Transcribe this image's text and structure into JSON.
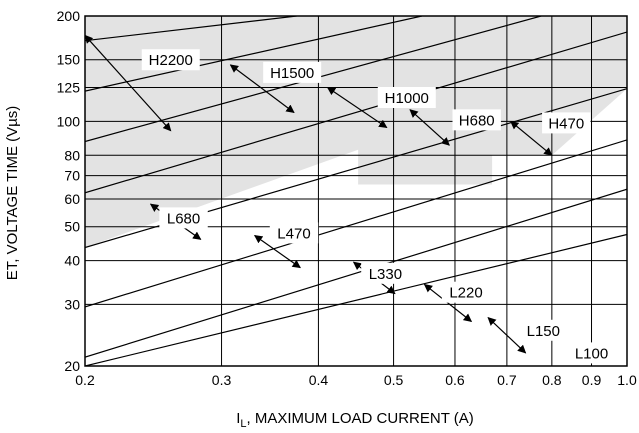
{
  "chart_data": {
    "type": "line",
    "xlabel": "I_L, MAXIMUM LOAD CURRENT (A)",
    "xlabel_main": "I",
    "xlabel_sub": "L",
    "xlabel_rest": ", MAXIMUM LOAD CURRENT (A)",
    "ylabel": "ET, VOLTAGE TIME (Vµs)",
    "x_scale": "log",
    "y_scale": "log",
    "xlim": [
      0.2,
      1.0
    ],
    "ylim": [
      20,
      200
    ],
    "x_ticks": [
      0.2,
      0.3,
      0.4,
      0.5,
      0.6,
      0.7,
      0.8,
      0.9,
      1.0
    ],
    "x_tick_labels": [
      "0.2",
      "0.3",
      "0.4",
      "0.5",
      "0.6",
      "0.7",
      "0.8",
      "0.9",
      "1.0"
    ],
    "y_ticks": [
      20,
      30,
      40,
      50,
      60,
      70,
      80,
      100,
      125,
      150,
      200
    ],
    "y_tick_labels": [
      "20",
      "30",
      "40",
      "50",
      "60",
      "70",
      "80",
      "100",
      "125",
      "150",
      "200"
    ],
    "grid": true,
    "shaded_region": {
      "color": "#e3e3e3",
      "polygon": [
        [
          0.2,
          200
        ],
        [
          1.0,
          200
        ],
        [
          1.0,
          124
        ],
        [
          0.8,
          80
        ],
        [
          0.67,
          80
        ],
        [
          0.67,
          66
        ],
        [
          0.45,
          66
        ],
        [
          0.45,
          83
        ],
        [
          0.2,
          43.6
        ]
      ]
    },
    "boundary_lines": [
      {
        "points": [
          [
            0.2,
            20
          ],
          [
            1.0,
            47.5
          ]
        ]
      },
      {
        "points": [
          [
            0.2,
            21.2
          ],
          [
            1.0,
            64
          ]
        ]
      },
      {
        "points": [
          [
            0.2,
            29.5
          ],
          [
            1.0,
            88.5
          ]
        ]
      },
      {
        "points": [
          [
            0.2,
            43.6
          ],
          [
            1.0,
            124
          ]
        ]
      },
      {
        "points": [
          [
            0.2,
            62.5
          ],
          [
            1.0,
            180
          ]
        ]
      },
      {
        "points": [
          [
            0.2,
            87.6
          ],
          [
            0.775,
            200
          ]
        ]
      },
      {
        "points": [
          [
            0.2,
            122
          ],
          [
            0.544,
            200
          ]
        ]
      },
      {
        "points": [
          [
            0.2,
            170
          ],
          [
            0.375,
            200
          ]
        ]
      }
    ],
    "regions": [
      {
        "name": "H2200",
        "label_at": [
          0.258,
          150
        ],
        "arrow": [
          [
            0.2,
            176
          ],
          [
            0.258,
            94
          ]
        ]
      },
      {
        "name": "H1500",
        "label_at": [
          0.37,
          138
        ],
        "arrow": [
          [
            0.308,
            145
          ],
          [
            0.372,
            106
          ]
        ]
      },
      {
        "name": "H1000",
        "label_at": [
          0.52,
          117
        ],
        "arrow": [
          [
            0.411,
            125
          ],
          [
            0.49,
            96
          ]
        ]
      },
      {
        "name": "H680",
        "label_at": [
          0.64,
          101
        ],
        "arrow": [
          [
            0.525,
            108
          ],
          [
            0.59,
            85.5
          ]
        ]
      },
      {
        "name": "H470",
        "label_at": [
          0.835,
          99
        ],
        "arrow": [
          [
            0.708,
            100
          ],
          [
            0.8,
            80
          ]
        ]
      },
      {
        "name": "L680",
        "label_at": [
          0.268,
          53
        ],
        "arrow": [
          [
            0.243,
            58
          ],
          [
            0.282,
            46
          ]
        ]
      },
      {
        "name": "L470",
        "label_at": [
          0.372,
          48
        ],
        "arrow": [
          [
            0.331,
            47.2
          ],
          [
            0.379,
            38.2
          ]
        ]
      },
      {
        "name": "L330",
        "label_at": [
          0.488,
          36.8
        ],
        "arrow": [
          [
            0.444,
            39.6
          ],
          [
            0.502,
            32.2
          ]
        ]
      },
      {
        "name": "L220",
        "label_at": [
          0.62,
          32.5
        ],
        "arrow": [
          [
            0.548,
            34.2
          ],
          [
            0.63,
            26.8
          ]
        ]
      },
      {
        "name": "L150",
        "label_at": [
          0.78,
          25.3
        ],
        "arrow": [
          [
            0.662,
            27.5
          ],
          [
            0.74,
            21.8
          ]
        ]
      },
      {
        "name": "L100",
        "label_at": [
          0.9,
          21.8
        ],
        "arrow": null
      }
    ]
  }
}
